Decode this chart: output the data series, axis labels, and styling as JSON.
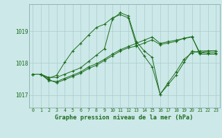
{
  "title": "Graphe pression niveau de la mer (hPa)",
  "bg_color": "#cce8e8",
  "grid_color": "#aacccc",
  "line_color": "#1a6b1a",
  "xlim": [
    -0.5,
    23.5
  ],
  "ylim": [
    1016.6,
    1019.85
  ],
  "yticks": [
    1017,
    1018,
    1019
  ],
  "xticks": [
    0,
    1,
    2,
    3,
    4,
    5,
    6,
    7,
    8,
    9,
    10,
    11,
    12,
    13,
    14,
    15,
    16,
    17,
    18,
    19,
    20,
    21,
    22,
    23
  ],
  "series": [
    [
      1017.65,
      1017.65,
      1017.55,
      1017.55,
      1017.65,
      1017.75,
      1017.85,
      1018.05,
      1018.25,
      1018.45,
      1019.38,
      1019.58,
      1019.48,
      1018.68,
      1018.38,
      1018.18,
      1017.02,
      1017.38,
      1017.72,
      1018.12,
      1018.32,
      1018.38,
      1018.38,
      1018.38
    ],
    [
      1017.65,
      1017.65,
      1017.45,
      1017.42,
      1017.52,
      1017.62,
      1017.72,
      1017.88,
      1017.98,
      1018.12,
      1018.28,
      1018.42,
      1018.52,
      1018.62,
      1018.72,
      1018.82,
      1018.62,
      1018.67,
      1018.72,
      1018.77,
      1018.82,
      1018.32,
      1018.32,
      1018.32
    ],
    [
      1017.65,
      1017.65,
      1017.48,
      1017.38,
      1017.48,
      1017.58,
      1017.68,
      1017.83,
      1017.93,
      1018.08,
      1018.23,
      1018.38,
      1018.48,
      1018.53,
      1018.63,
      1018.73,
      1018.58,
      1018.63,
      1018.68,
      1018.78,
      1018.83,
      1018.28,
      1018.28,
      1018.28
    ],
    [
      1017.65,
      1017.65,
      1017.52,
      1017.62,
      1018.02,
      1018.38,
      1018.62,
      1018.88,
      1019.12,
      1019.22,
      1019.42,
      1019.52,
      1019.42,
      1018.58,
      1018.22,
      1017.88,
      1017.02,
      1017.32,
      1017.62,
      1018.02,
      1018.38,
      1018.32,
      1018.38,
      1018.38
    ]
  ]
}
